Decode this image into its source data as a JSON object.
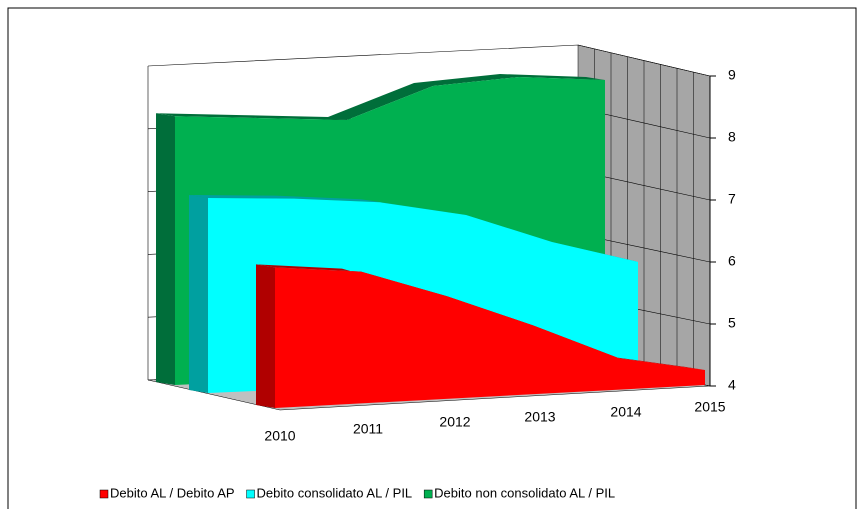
{
  "chart_data": {
    "type": "area3d",
    "categories": [
      "2010",
      "2011",
      "2012",
      "2013",
      "2014",
      "2015"
    ],
    "series": [
      {
        "name": "Debito AL / Debito AP",
        "color": "#ff0000",
        "values": [
          5.9,
          5.85,
          5.5,
          5.05,
          4.5,
          4.25
        ]
      },
      {
        "name": "Debito consolidato AL / PIL",
        "color": "#00ffff",
        "values": [
          7.0,
          7.0,
          6.95,
          6.75,
          6.3,
          5.95
        ]
      },
      {
        "name": "Debito non consolidato AL / PIL",
        "color": "#00b050",
        "values": [
          8.2,
          8.2,
          8.2,
          8.8,
          9.0,
          9.0
        ]
      }
    ],
    "ylim": [
      4,
      9
    ],
    "yticks": [
      4,
      5,
      6,
      7,
      8,
      9
    ],
    "grid": true,
    "legend": "bottom"
  }
}
